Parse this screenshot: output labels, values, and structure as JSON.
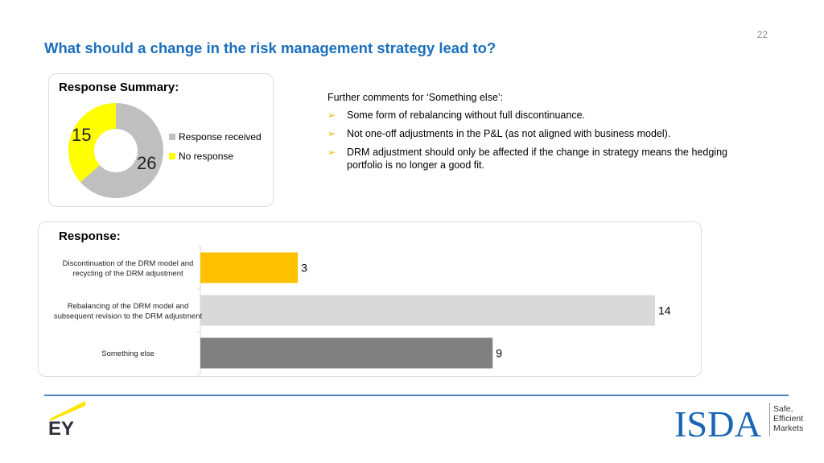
{
  "page_number": "22",
  "title": "What should a change in the risk management strategy lead to?",
  "summary": {
    "heading": "Response Summary:",
    "slices": [
      {
        "label": "Response received",
        "value": 26,
        "color": "#bfbfbf"
      },
      {
        "label": "No response",
        "value": 15,
        "color": "#ffff00"
      }
    ]
  },
  "comments": {
    "heading": "Further comments for ‘Something else’:",
    "items": [
      "Some form of rebalancing without full discontinuance.",
      "Not one-off adjustments in the P&L (as not aligned with business model).",
      "DRM adjustment should only be affected if the change in strategy means the hedging portfolio is no longer a good fit."
    ]
  },
  "response": {
    "heading": "Response:"
  },
  "chart_data": [
    {
      "type": "pie",
      "categories": [
        "Response received",
        "No response"
      ],
      "values": [
        26,
        15
      ],
      "colors": [
        "#bfbfbf",
        "#ffff00"
      ],
      "legend": "right"
    },
    {
      "type": "bar",
      "orientation": "horizontal",
      "categories": [
        "Discontinuation of the DRM model and recycling of the DRM adjustment",
        "Rebalancing of the DRM model and subsequent revision to the DRM adjustment",
        "Something else"
      ],
      "category_lines": [
        [
          "Discontinuation of the DRM model and",
          "recycling of the DRM adjustment"
        ],
        [
          "Rebalancing of the DRM model and",
          "subsequent revision to the DRM adjustment"
        ],
        [
          "Something else"
        ]
      ],
      "values": [
        3,
        14,
        9
      ],
      "colors": [
        "#ffc000",
        "#d9d9d9",
        "#808080"
      ],
      "xlim": [
        0,
        14
      ]
    }
  ],
  "footer": {
    "left_logo": "EY",
    "right_logo": "ISDA",
    "tagline": [
      "Safe,",
      "Efficient",
      "Markets"
    ]
  }
}
